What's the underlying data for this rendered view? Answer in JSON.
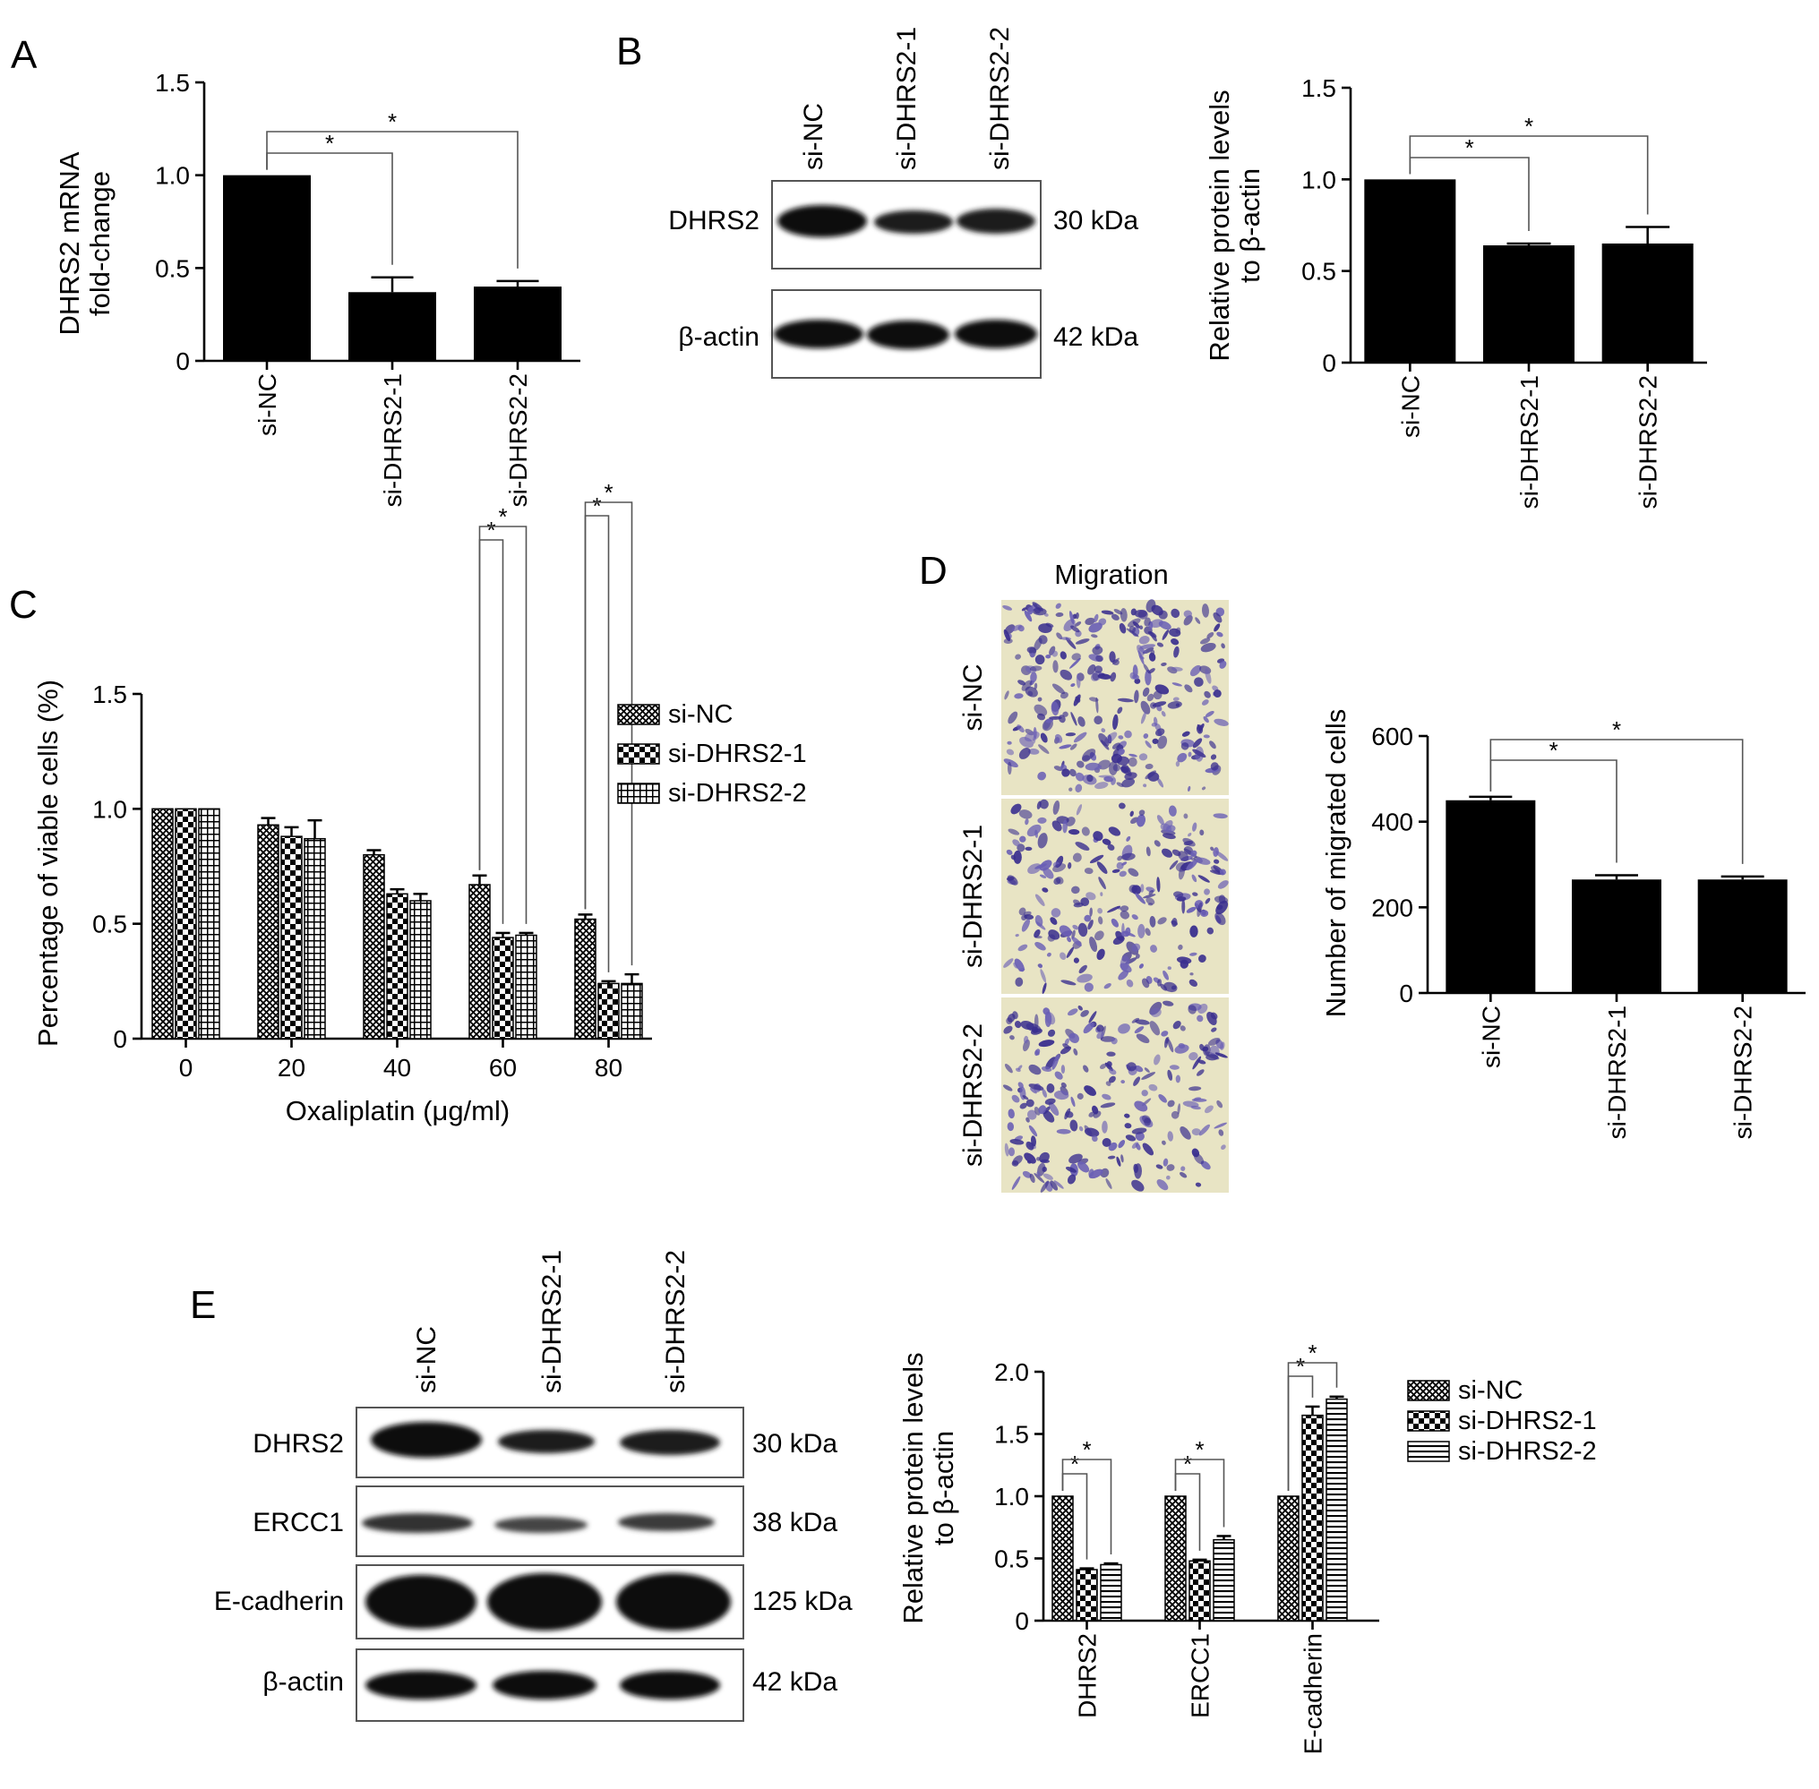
{
  "colors": {
    "bar": "#000000",
    "figure_background": "#ffffff",
    "micrograph_stain": "#3a2f8f",
    "micrograph_background": "#e8e4c4"
  },
  "panels": {
    "A": {
      "letter": "A"
    },
    "B": {
      "letter": "B",
      "lanes": [
        "si-NC",
        "si-DHRS2-1",
        "si-DHRS2-2"
      ],
      "blots": [
        {
          "protein": "DHRS2",
          "size": "30 kDa"
        },
        {
          "protein": "β-actin",
          "size": "42 kDa"
        }
      ]
    },
    "C": {
      "letter": "C"
    },
    "D": {
      "letter": "D",
      "image_title": "Migration",
      "rows": [
        "si-NC",
        "si-DHRS2-1",
        "si-DHRS2-2"
      ]
    },
    "E": {
      "letter": "E",
      "lanes": [
        "si-NC",
        "si-DHRS2-1",
        "si-DHRS2-2"
      ],
      "blots": [
        {
          "protein": "DHRS2",
          "size": "30 kDa"
        },
        {
          "protein": "ERCC1",
          "size": "38 kDa"
        },
        {
          "protein": "E-cadherin",
          "size": "125 kDa"
        },
        {
          "protein": "β-actin",
          "size": "42 kDa"
        }
      ]
    }
  },
  "chart_data": [
    {
      "panel": "A",
      "type": "bar",
      "categories": [
        "si-NC",
        "si-DHRS2-1",
        "si-DHRS2-2"
      ],
      "values": [
        1.0,
        0.37,
        0.4
      ],
      "errors": [
        0,
        0.08,
        0.03
      ],
      "ylabel": [
        "DHRS2 mRNA",
        "fold-change"
      ],
      "ylim": [
        0,
        1.5
      ],
      "yticks": [
        "0",
        "0.5",
        "1.0",
        "1.5"
      ],
      "significance": [
        {
          "from": 0,
          "to": 1,
          "label": "*"
        },
        {
          "from": 0,
          "to": 2,
          "label": "*"
        }
      ]
    },
    {
      "panel": "B",
      "type": "bar",
      "categories": [
        "si-NC",
        "si-DHRS2-1",
        "si-DHRS2-2"
      ],
      "values": [
        1.0,
        0.64,
        0.65
      ],
      "errors": [
        0,
        0.01,
        0.09
      ],
      "ylabel": [
        "Relative protein levels",
        "to β-actin"
      ],
      "ylim": [
        0,
        1.5
      ],
      "yticks": [
        "0",
        "0.5",
        "1.0",
        "1.5"
      ],
      "significance": [
        {
          "from": 0,
          "to": 1,
          "label": "*"
        },
        {
          "from": 0,
          "to": 2,
          "label": "*"
        }
      ]
    },
    {
      "panel": "C",
      "type": "bar",
      "categories": [
        "0",
        "20",
        "40",
        "60",
        "80"
      ],
      "xlabel": "Oxaliplatin (μg/ml)",
      "ylabel": "Percentage of viable cells (%)",
      "ylim": [
        0,
        1.5
      ],
      "yticks": [
        "0",
        "0.5",
        "1.0",
        "1.5"
      ],
      "legend_position": "top-right",
      "series": [
        {
          "name": "si-NC",
          "pattern": "crosshatch",
          "values": [
            1.0,
            0.93,
            0.8,
            0.67,
            0.52
          ],
          "errors": [
            0,
            0.03,
            0.02,
            0.04,
            0.02
          ]
        },
        {
          "name": "si-DHRS2-1",
          "pattern": "checker",
          "values": [
            1.0,
            0.88,
            0.63,
            0.44,
            0.24
          ],
          "errors": [
            0,
            0.04,
            0.02,
            0.02,
            0.01
          ]
        },
        {
          "name": "si-DHRS2-2",
          "pattern": "grid",
          "values": [
            1.0,
            0.87,
            0.6,
            0.45,
            0.24
          ],
          "errors": [
            0,
            0.08,
            0.03,
            0.01,
            0.04
          ]
        }
      ],
      "significance": [
        {
          "group": 3,
          "from": 0,
          "to": 1,
          "label": "*"
        },
        {
          "group": 3,
          "from": 0,
          "to": 2,
          "label": "*"
        },
        {
          "group": 4,
          "from": 0,
          "to": 1,
          "label": "*"
        },
        {
          "group": 4,
          "from": 0,
          "to": 2,
          "label": "*"
        }
      ]
    },
    {
      "panel": "D",
      "type": "bar",
      "categories": [
        "si-NC",
        "si-DHRS2-1",
        "si-DHRS2-2"
      ],
      "values": [
        450,
        265,
        265
      ],
      "errors": [
        8,
        10,
        7
      ],
      "ylabel": "Number of migrated cells",
      "ylim": [
        0,
        600
      ],
      "yticks": [
        "0",
        "200",
        "400",
        "600"
      ],
      "significance": [
        {
          "from": 0,
          "to": 1,
          "label": "*"
        },
        {
          "from": 0,
          "to": 2,
          "label": "*"
        }
      ]
    },
    {
      "panel": "E",
      "type": "bar",
      "categories": [
        "DHRS2",
        "ERCC1",
        "E-cadherin"
      ],
      "ylabel": [
        "Relative protein levels",
        "to β-actin"
      ],
      "ylim": [
        0,
        2.0
      ],
      "yticks": [
        "0",
        "0.5",
        "1.0",
        "1.5",
        "2.0"
      ],
      "legend_position": "top-right",
      "series": [
        {
          "name": "si-NC",
          "pattern": "crosshatch",
          "values": [
            1.0,
            1.0,
            1.0
          ],
          "errors": [
            0,
            0,
            0
          ]
        },
        {
          "name": "si-DHRS2-1",
          "pattern": "checker",
          "values": [
            0.41,
            0.48,
            1.65
          ],
          "errors": [
            0.01,
            0.01,
            0.07
          ]
        },
        {
          "name": "si-DHRS2-2",
          "pattern": "hlines",
          "values": [
            0.45,
            0.65,
            1.78
          ],
          "errors": [
            0.01,
            0.03,
            0.02
          ]
        }
      ],
      "significance": [
        {
          "group": 0,
          "from": 0,
          "to": 1,
          "label": "*"
        },
        {
          "group": 0,
          "from": 0,
          "to": 2,
          "label": "*"
        },
        {
          "group": 1,
          "from": 0,
          "to": 1,
          "label": "*"
        },
        {
          "group": 1,
          "from": 0,
          "to": 2,
          "label": "*"
        },
        {
          "group": 2,
          "from": 0,
          "to": 1,
          "label": "*"
        },
        {
          "group": 2,
          "from": 0,
          "to": 2,
          "label": "*"
        }
      ]
    }
  ]
}
